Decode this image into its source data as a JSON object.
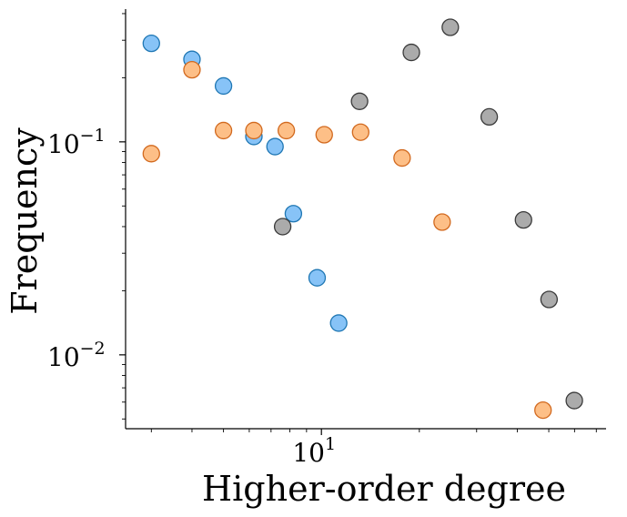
{
  "chart_data": {
    "type": "scatter",
    "title": "",
    "xlabel": "Higher-order degree",
    "ylabel": "Frequency",
    "xscale": "log",
    "yscale": "log",
    "xlim": [
      2.5,
      75
    ],
    "ylim": [
      0.0045,
      0.42
    ],
    "grid": false,
    "legend": "none",
    "x_ticks": [
      {
        "base": "10",
        "exp": "1",
        "value": 10
      }
    ],
    "y_ticks": [
      {
        "base": "10",
        "exp": "−1",
        "value": 0.1
      },
      {
        "base": "10",
        "exp": "−2",
        "value": 0.01
      }
    ],
    "series": [
      {
        "color": "#87c3f7",
        "edge": "#1f77b4",
        "points": [
          {
            "x": 3,
            "y": 0.29
          },
          {
            "x": 4,
            "y": 0.244
          },
          {
            "x": 5,
            "y": 0.183
          },
          {
            "x": 6.2,
            "y": 0.106
          },
          {
            "x": 7.2,
            "y": 0.095
          },
          {
            "x": 8.2,
            "y": 0.046
          },
          {
            "x": 9.7,
            "y": 0.023
          },
          {
            "x": 11.3,
            "y": 0.0141
          }
        ]
      },
      {
        "color": "#fdbf87",
        "edge": "#d2691e",
        "points": [
          {
            "x": 3,
            "y": 0.088
          },
          {
            "x": 4,
            "y": 0.218
          },
          {
            "x": 5,
            "y": 0.113
          },
          {
            "x": 6.2,
            "y": 0.113
          },
          {
            "x": 7.8,
            "y": 0.113
          },
          {
            "x": 10.2,
            "y": 0.108
          },
          {
            "x": 13.2,
            "y": 0.111
          },
          {
            "x": 17.7,
            "y": 0.084
          },
          {
            "x": 23.5,
            "y": 0.042
          },
          {
            "x": 48,
            "y": 0.0055
          }
        ]
      },
      {
        "color": "#ababab",
        "edge": "#3a3a3a",
        "points": [
          {
            "x": 7.6,
            "y": 0.04
          },
          {
            "x": 13.1,
            "y": 0.155
          },
          {
            "x": 18.9,
            "y": 0.263
          },
          {
            "x": 24.9,
            "y": 0.345
          },
          {
            "x": 32.8,
            "y": 0.131
          },
          {
            "x": 41.8,
            "y": 0.043
          },
          {
            "x": 50.1,
            "y": 0.0182
          },
          {
            "x": 59.9,
            "y": 0.0061
          }
        ]
      }
    ]
  }
}
